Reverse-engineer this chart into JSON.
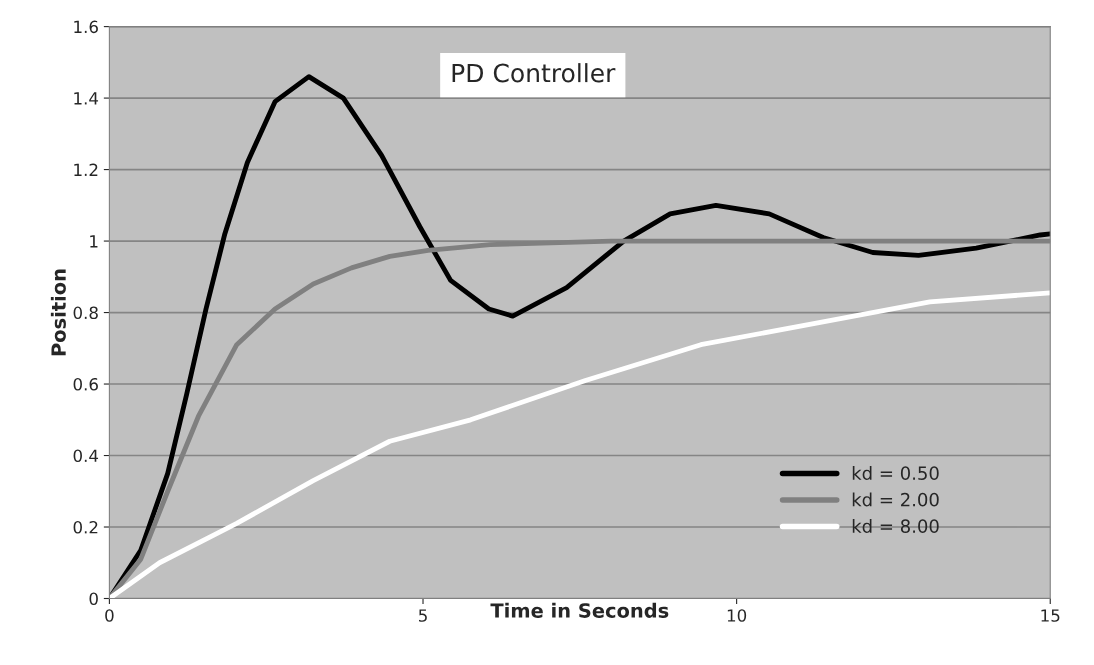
{
  "chart_data": {
    "type": "line",
    "title": "PD Controller",
    "xlabel": "Time in Seconds",
    "ylabel": "Position",
    "xlim": [
      0,
      15
    ],
    "xticks": [
      0,
      5,
      10,
      15
    ],
    "ylim": [
      0,
      1.6
    ],
    "yticks": [
      0,
      0.2,
      0.4,
      0.6,
      0.8,
      1,
      1.2,
      1.4,
      1.6
    ],
    "grid": "y",
    "legend": "bottom right",
    "marker": "none",
    "line_style": "solid",
    "series": [
      {
        "name": "kd = 0.50",
        "color": "#000000",
        "x": [
          0,
          0.5,
          0.93,
          1.23,
          1.54,
          1.84,
          2.2,
          2.64,
          3.18,
          3.73,
          4.34,
          4.95,
          5.44,
          6.05,
          6.43,
          7.29,
          8.2,
          8.94,
          9.67,
          10.52,
          11.38,
          12.17,
          12.9,
          13.82,
          14.84,
          15
        ],
        "values": [
          0,
          0.135,
          0.35,
          0.57,
          0.81,
          1.02,
          1.22,
          1.39,
          1.46,
          1.4,
          1.24,
          1.04,
          0.89,
          0.81,
          0.79,
          0.87,
          1.0,
          1.076,
          1.1,
          1.076,
          1.01,
          0.968,
          0.96,
          0.98,
          1.017,
          1.02
        ]
      },
      {
        "name": "kd = 2.00",
        "color": "#808080",
        "x": [
          0,
          0.5,
          0.93,
          1.42,
          2.03,
          2.64,
          3.25,
          3.86,
          4.47,
          5.08,
          6.07,
          8,
          10,
          12,
          15
        ],
        "values": [
          0,
          0.11,
          0.3,
          0.51,
          0.71,
          0.81,
          0.88,
          0.925,
          0.957,
          0.974,
          0.99,
          1.0,
          1.0,
          1.0,
          1.0
        ]
      },
      {
        "name": "kd = 8.00",
        "color": "#ffffff",
        "x": [
          0,
          0.8,
          2.03,
          3.25,
          4.47,
          5.76,
          7.59,
          9.43,
          11.25,
          13.08,
          15
        ],
        "values": [
          0,
          0.1,
          0.21,
          0.33,
          0.44,
          0.5,
          0.61,
          0.71,
          0.77,
          0.83,
          0.855
        ]
      }
    ]
  }
}
